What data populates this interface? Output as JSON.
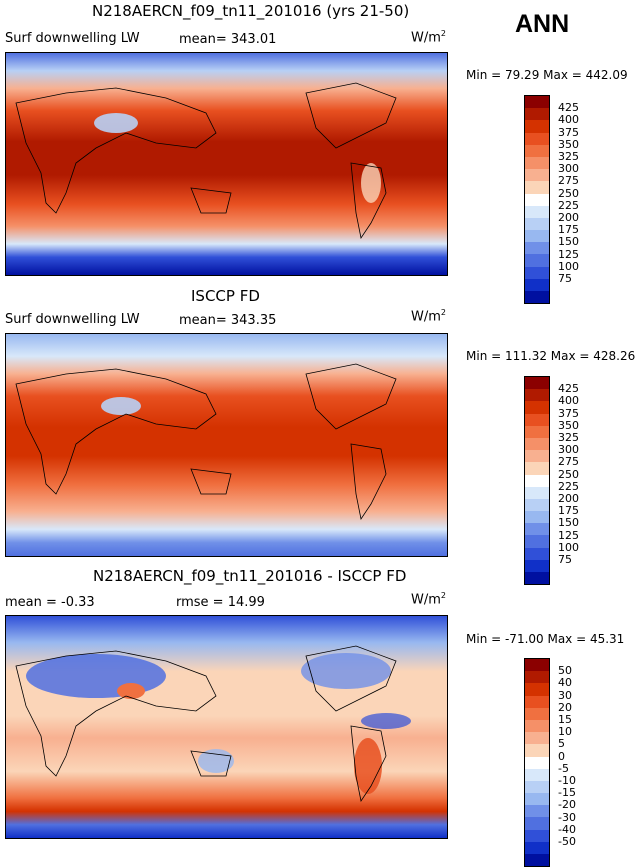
{
  "season": "ANN",
  "panels": [
    {
      "title": "N218AERCN_f09_tn11_201016 (yrs 21-50)",
      "left_label": "Surf downwelling LW",
      "mid_label": "mean= 343.01",
      "units": "W/m",
      "units_sup": "2",
      "minmax": "Min =  79.29 Max = 442.09"
    },
    {
      "title": "ISCCP FD",
      "left_label": "Surf downwelling LW",
      "mid_label": "mean= 343.35",
      "units": "W/m",
      "units_sup": "2",
      "minmax": "Min = 111.32 Max = 428.26"
    },
    {
      "title": "N218AERCN_f09_tn11_201016 - ISCCP FD",
      "left_label": "mean =  -0.33",
      "mid_label": "rmse =  14.99",
      "units": "W/m",
      "units_sup": "2",
      "minmax": "Min = -71.00 Max =  45.31"
    }
  ],
  "colorbar_colors": [
    "#8b0000",
    "#b01a00",
    "#d43200",
    "#e85020",
    "#f07040",
    "#f59068",
    "#f8b090",
    "#fbd5b8",
    "#ffffff",
    "#d8e8fa",
    "#b8d0f5",
    "#98b8f0",
    "#7090e8",
    "#5070e0",
    "#3050d8",
    "#1030c8",
    "#0010a0"
  ],
  "chart_data": [
    {
      "type": "heatmap",
      "title": "N218AERCN_f09_tn11_201016 (yrs 21-50)",
      "variable": "Surf downwelling LW",
      "units": "W/m2",
      "mean": 343.01,
      "min": 79.29,
      "max": 442.09,
      "levels": [
        "425",
        "400",
        "375",
        "350",
        "325",
        "300",
        "275",
        "250",
        "225",
        "200",
        "175",
        "150",
        "125",
        "100",
        "75"
      ]
    },
    {
      "type": "heatmap",
      "title": "ISCCP FD",
      "variable": "Surf downwelling LW",
      "units": "W/m2",
      "mean": 343.35,
      "min": 111.32,
      "max": 428.26,
      "levels": [
        "425",
        "400",
        "375",
        "350",
        "325",
        "300",
        "275",
        "250",
        "225",
        "200",
        "175",
        "150",
        "125",
        "100",
        "75"
      ]
    },
    {
      "type": "heatmap",
      "title": "N218AERCN_f09_tn11_201016 - ISCCP FD",
      "variable": "difference",
      "units": "W/m2",
      "mean": -0.33,
      "rmse": 14.99,
      "min": -71.0,
      "max": 45.31,
      "levels": [
        "50",
        "40",
        "30",
        "20",
        "15",
        "10",
        "5",
        "0",
        "-5",
        "-10",
        "-15",
        "-20",
        "-30",
        "-40",
        "-50"
      ]
    }
  ]
}
